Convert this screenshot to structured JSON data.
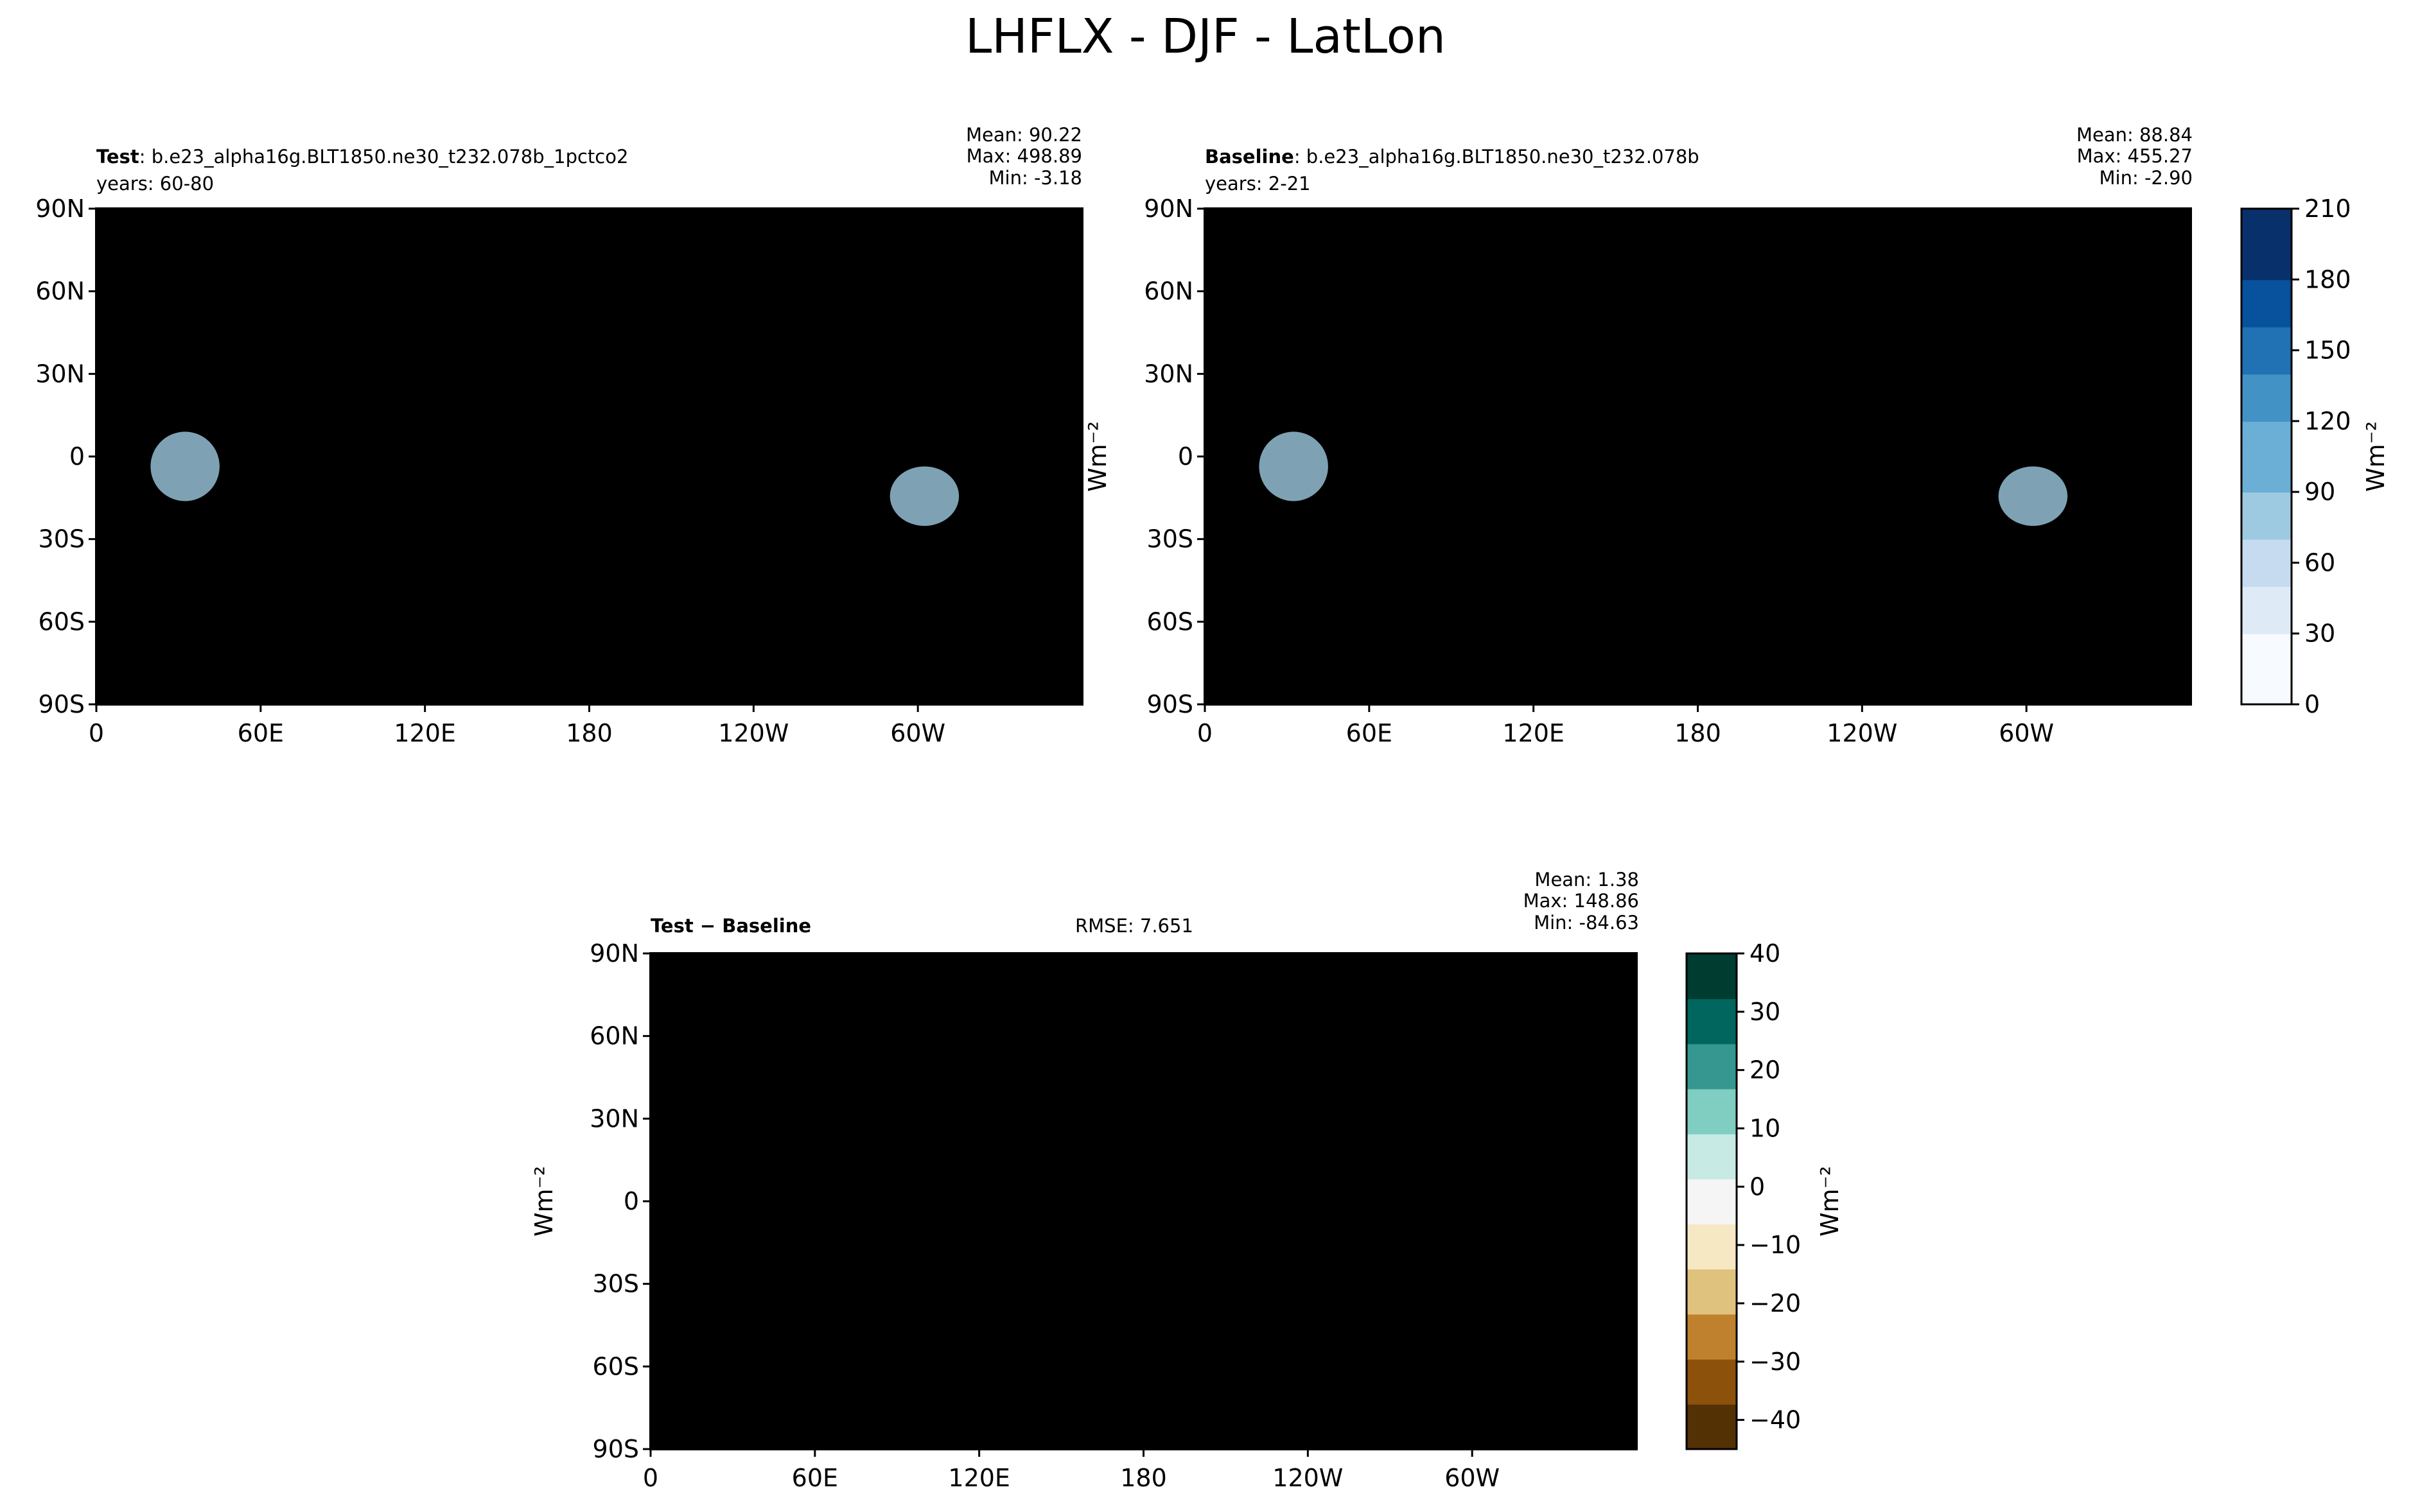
{
  "title": "LHFLX - DJF - LatLon",
  "colors": {
    "ocean_blue_scale": [
      "#f7fbff",
      "#deebf7",
      "#c6dbef",
      "#9ecae1",
      "#6baed6",
      "#4292c6",
      "#2171b5",
      "#08519c",
      "#08306b"
    ],
    "diff_scale": [
      "#543005",
      "#8c510a",
      "#bf812d",
      "#dfc27d",
      "#f6e8c3",
      "#f5f5f5",
      "#c7eae5",
      "#80cdc1",
      "#35978f",
      "#01665e",
      "#003c30"
    ],
    "coastline": "#000000"
  },
  "panels": {
    "test": {
      "label_bold": "Test",
      "label_rest": ": b.e23_alpha16g.BLT1850.ne30_t232.078b_1pctco2",
      "years": "years: 60-80",
      "mean": "Mean: 90.22",
      "max": "Max: 498.89",
      "min": "Min: -3.18"
    },
    "baseline": {
      "label_bold": "Baseline",
      "label_rest": ": b.e23_alpha16g.BLT1850.ne30_t232.078b",
      "years": "years: 2-21",
      "mean": "Mean: 88.84",
      "max": "Max: 455.27",
      "min": "Min: -2.90"
    },
    "diff": {
      "label_bold": "Test − Baseline",
      "rmse": "RMSE: 7.651",
      "mean": "Mean:  1.38",
      "max": "Max: 148.86",
      "min": "Min: -84.63"
    }
  },
  "axes": {
    "lat_ticks": [
      "90N",
      "60N",
      "30N",
      "0",
      "30S",
      "60S",
      "90S"
    ],
    "lon_ticks": [
      "0",
      "60E",
      "120E",
      "180",
      "120W",
      "60W"
    ]
  },
  "colorbars": {
    "main": {
      "unit": "Wm⁻²",
      "ticks": [
        "210",
        "180",
        "150",
        "120",
        "90",
        "60",
        "30",
        "0"
      ]
    },
    "diff": {
      "unit": "Wm⁻²",
      "ticks": [
        "40",
        "30",
        "20",
        "10",
        "0",
        "−10",
        "−20",
        "−30",
        "−40"
      ]
    }
  },
  "chart_data": [
    {
      "type": "heatmap",
      "name": "Test",
      "xlabel": "",
      "ylabel": "",
      "xlim": [
        0,
        360
      ],
      "ylim": [
        -90,
        90
      ],
      "stats": {
        "mean": 90.22,
        "max": 498.89,
        "min": -3.18
      },
      "colorbar_range": [
        0,
        210
      ],
      "colorbar_unit": "Wm-2"
    },
    {
      "type": "heatmap",
      "name": "Baseline",
      "xlabel": "",
      "ylabel": "Wm-2",
      "xlim": [
        0,
        360
      ],
      "ylim": [
        -90,
        90
      ],
      "stats": {
        "mean": 88.84,
        "max": 455.27,
        "min": -2.9
      },
      "colorbar_range": [
        0,
        210
      ],
      "colorbar_unit": "Wm-2"
    },
    {
      "type": "heatmap",
      "name": "Test - Baseline",
      "xlabel": "",
      "ylabel": "Wm-2",
      "xlim": [
        0,
        360
      ],
      "ylim": [
        -90,
        90
      ],
      "stats": {
        "mean": 1.38,
        "max": 148.86,
        "min": -84.63,
        "rmse": 7.651
      },
      "colorbar_range": [
        -45,
        40
      ],
      "colorbar_unit": "Wm-2"
    }
  ]
}
